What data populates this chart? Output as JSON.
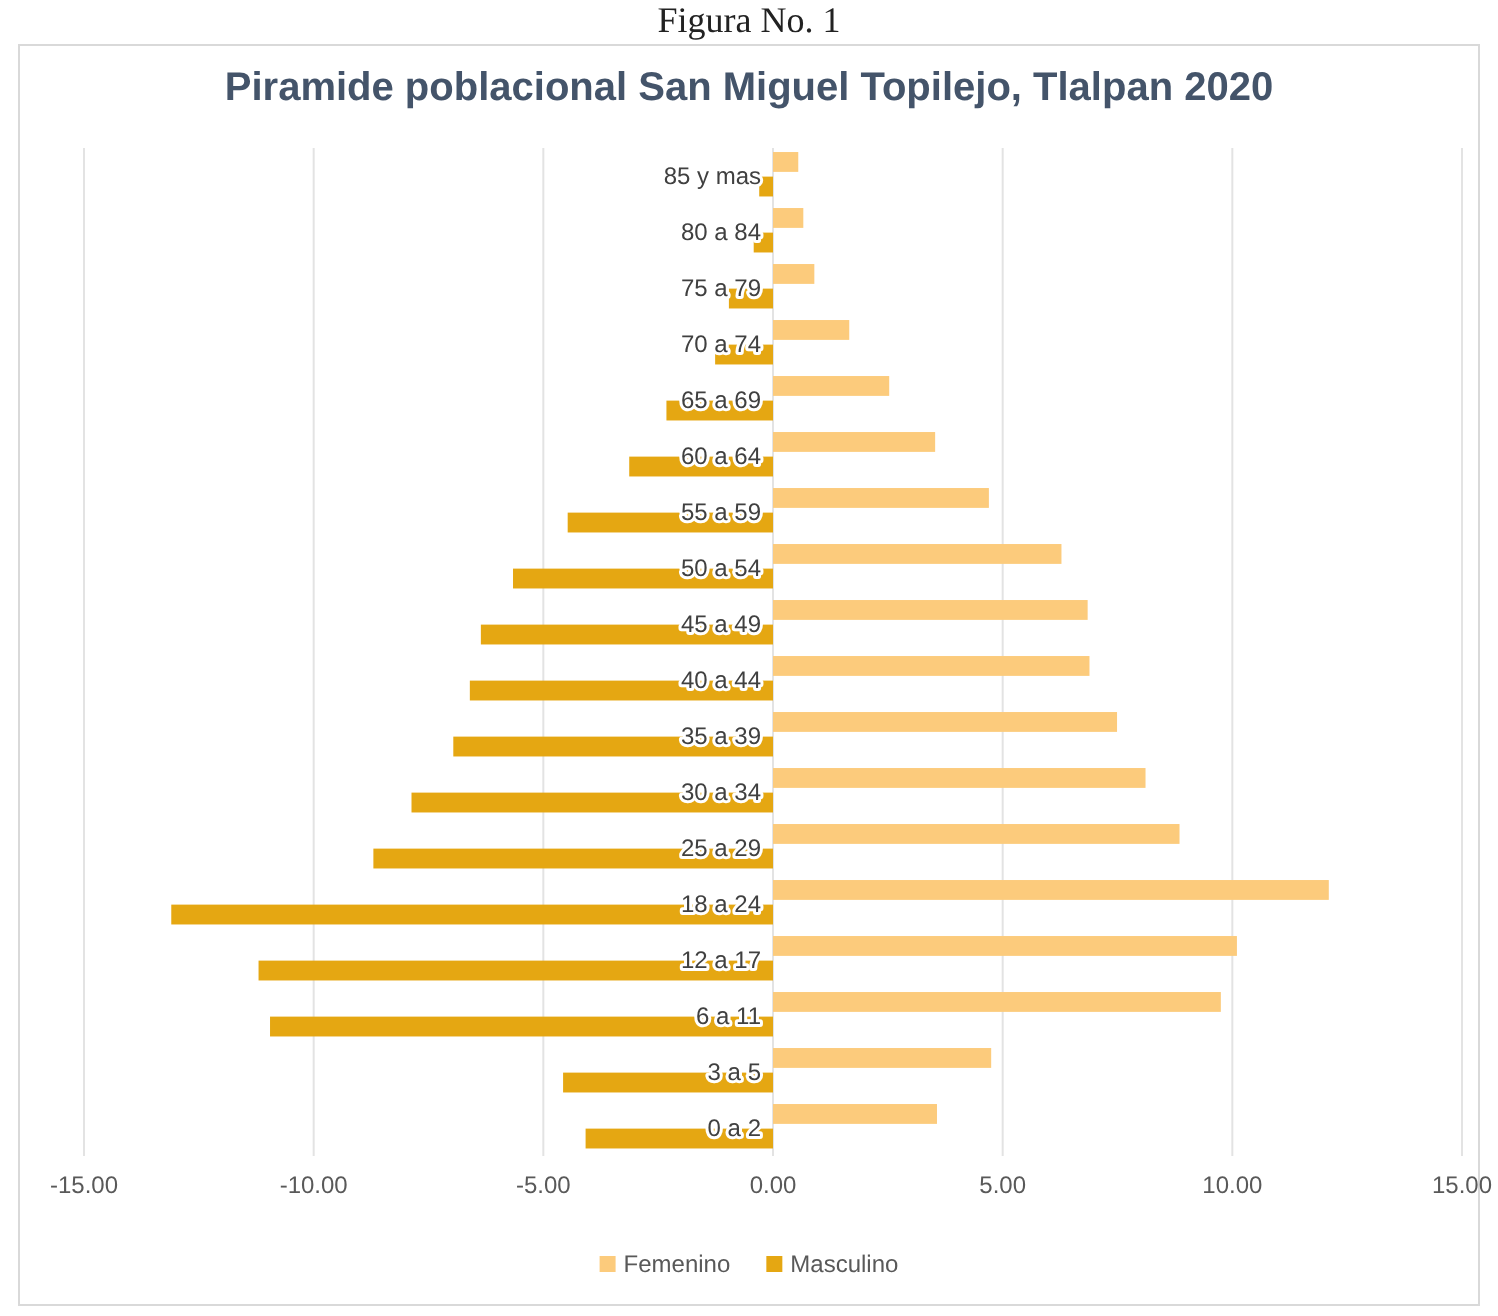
{
  "chart_data": {
    "type": "bar",
    "orientation": "horizontal",
    "title": "Piramide poblacional San Miguel Topilejo, Tlalpan 2020",
    "annotations": [
      "Figura No. 1"
    ],
    "categories": [
      "85 y mas",
      "80 a 84",
      "75 a 79",
      "70 a 74",
      "65 a 69",
      "60 a 64",
      "55 a 59",
      "50 a 54",
      "45 a 49",
      "40 a 44",
      "35 a 39",
      "30 a 34",
      "25 a 29",
      "18 a 24",
      "12 a 17",
      "6 a 11",
      "3 a 5",
      "0 a 2"
    ],
    "series": [
      {
        "name": "Femenino",
        "color": "#fccb7c",
        "values": [
          0.55,
          0.66,
          0.9,
          1.66,
          2.53,
          3.53,
          4.7,
          6.28,
          6.85,
          6.89,
          7.49,
          8.11,
          8.85,
          12.1,
          10.1,
          9.75,
          4.75,
          3.57
        ]
      },
      {
        "name": "Masculino",
        "color": "#e5a712",
        "values": [
          -0.3,
          -0.42,
          -0.96,
          -1.26,
          -2.32,
          -3.13,
          -4.47,
          -5.66,
          -6.36,
          -6.6,
          -6.96,
          -7.87,
          -8.7,
          -13.1,
          -11.2,
          -10.95,
          -4.57,
          -4.08
        ]
      }
    ],
    "xlim": [
      -15,
      15
    ],
    "xticks": [
      {
        "value": -15,
        "label": "-15.00"
      },
      {
        "value": -10,
        "label": "-10.00"
      },
      {
        "value": -5,
        "label": "-5.00"
      },
      {
        "value": 0,
        "label": "0.00"
      },
      {
        "value": 5,
        "label": "5.00"
      },
      {
        "value": 10,
        "label": "10.00"
      },
      {
        "value": 15,
        "label": "15.00"
      }
    ],
    "grid": "x",
    "legend": "bottom"
  }
}
